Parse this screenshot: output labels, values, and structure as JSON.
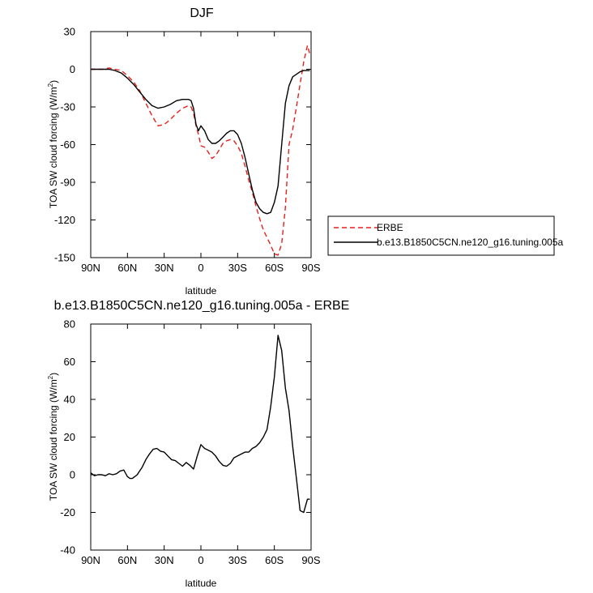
{
  "chart_data": [
    {
      "type": "line",
      "title": "DJF",
      "xlabel": "latitude",
      "ylabel": "TOA SW cloud forcing (W/m",
      "ylabel_sup": "2",
      "ylabel_end": ")",
      "xlim": [
        90,
        -90
      ],
      "ylim": [
        -150,
        30
      ],
      "xticks": [
        {
          "value": 90,
          "label": "90N"
        },
        {
          "value": 60,
          "label": "60N"
        },
        {
          "value": 30,
          "label": "30N"
        },
        {
          "value": 0,
          "label": "0"
        },
        {
          "value": -30,
          "label": "30S"
        },
        {
          "value": -60,
          "label": "60S"
        },
        {
          "value": -90,
          "label": "90S"
        }
      ],
      "yticks": [
        {
          "value": 30,
          "label": "30"
        },
        {
          "value": 0,
          "label": "0"
        },
        {
          "value": -30,
          "label": "-30"
        },
        {
          "value": -60,
          "label": "-60"
        },
        {
          "value": -90,
          "label": "-90"
        },
        {
          "value": -120,
          "label": "-120"
        },
        {
          "value": -150,
          "label": "-150"
        }
      ],
      "grid": false,
      "legend_position": "outside-right",
      "series": [
        {
          "name": "ERBE",
          "color": "#e8201c",
          "dash": "6,4",
          "x": [
            90,
            85,
            80,
            75,
            70,
            65,
            60,
            55,
            50,
            45,
            40,
            35,
            30,
            25,
            20,
            15,
            10,
            8,
            6,
            4,
            2,
            0,
            -3,
            -6,
            -9,
            -12,
            -15,
            -18,
            -21,
            -24,
            -27,
            -30,
            -33,
            -36,
            -39,
            -42,
            -45,
            -48,
            -51,
            -54,
            -57,
            -60,
            -63,
            -66,
            -69,
            -72,
            -75,
            -78,
            -81,
            -84,
            -87,
            -89
          ],
          "y": [
            0,
            0,
            0,
            1,
            0,
            -1,
            -5,
            -10,
            -17,
            -27,
            -37,
            -45,
            -44,
            -40,
            -35,
            -31,
            -29,
            -30,
            -35,
            -45,
            -52,
            -61,
            -62,
            -66,
            -71,
            -69,
            -64,
            -59,
            -57,
            -56,
            -57,
            -61,
            -67,
            -77,
            -88,
            -98,
            -109,
            -119,
            -128,
            -134,
            -140,
            -147,
            -148,
            -139,
            -110,
            -60,
            -48,
            -30,
            -12,
            6,
            19,
            12
          ]
        },
        {
          "name": "b.e13.B1850C5CN.ne120_g16.tuning.005a",
          "color": "#000000",
          "dash": "",
          "x": [
            90,
            85,
            80,
            75,
            70,
            65,
            60,
            55,
            50,
            45,
            40,
            35,
            30,
            25,
            20,
            15,
            10,
            8,
            6,
            4,
            2,
            0,
            -3,
            -6,
            -9,
            -12,
            -15,
            -18,
            -21,
            -24,
            -27,
            -30,
            -33,
            -36,
            -39,
            -42,
            -45,
            -48,
            -51,
            -54,
            -57,
            -60,
            -63,
            -66,
            -69,
            -72,
            -75,
            -78,
            -81,
            -84,
            -87,
            -89
          ],
          "y": [
            0,
            0,
            0,
            0,
            -1,
            -3,
            -7,
            -12,
            -18,
            -24,
            -29,
            -31,
            -30,
            -28,
            -25,
            -24,
            -24,
            -25,
            -31,
            -44,
            -49,
            -45,
            -49,
            -56,
            -59,
            -59,
            -57,
            -54,
            -51,
            -49,
            -49,
            -52,
            -59,
            -70,
            -83,
            -96,
            -106,
            -111,
            -114,
            -115,
            -114,
            -106,
            -93,
            -60,
            -27,
            -13,
            -6,
            -4,
            -2,
            -1,
            -1,
            -1
          ]
        }
      ]
    },
    {
      "type": "line",
      "title": "b.e13.B1850C5CN.ne120_g16.tuning.005a - ERBE",
      "xlabel": "latitude",
      "ylabel": "TOA SW cloud forcing (W/m",
      "ylabel_sup": "2",
      "ylabel_end": ")",
      "xlim": [
        90,
        -90
      ],
      "ylim": [
        -40,
        80
      ],
      "xticks": [
        {
          "value": 90,
          "label": "90N"
        },
        {
          "value": 60,
          "label": "60N"
        },
        {
          "value": 30,
          "label": "30N"
        },
        {
          "value": 0,
          "label": "0"
        },
        {
          "value": -30,
          "label": "30S"
        },
        {
          "value": -60,
          "label": "60S"
        },
        {
          "value": -90,
          "label": "90S"
        }
      ],
      "yticks": [
        {
          "value": 80,
          "label": "80"
        },
        {
          "value": 60,
          "label": "60"
        },
        {
          "value": 40,
          "label": "40"
        },
        {
          "value": 20,
          "label": "20"
        },
        {
          "value": 0,
          "label": "0"
        },
        {
          "value": -20,
          "label": "-20"
        },
        {
          "value": -40,
          "label": "-40"
        }
      ],
      "grid": false,
      "series": [
        {
          "color": "#000000",
          "dash": "",
          "x": [
            90,
            87,
            84,
            81,
            78,
            75,
            72,
            69,
            66,
            63,
            60,
            58,
            56,
            54,
            52,
            50,
            48,
            45,
            42,
            39,
            36,
            33,
            30,
            27,
            24,
            21,
            18,
            15,
            12,
            9,
            6,
            3,
            0,
            -3,
            -6,
            -9,
            -12,
            -15,
            -18,
            -21,
            -24,
            -27,
            -30,
            -33,
            -36,
            -39,
            -42,
            -45,
            -48,
            -51,
            -54,
            -57,
            -60,
            -63,
            -66,
            -69,
            -72,
            -75,
            -78,
            -81,
            -84,
            -87,
            -89
          ],
          "y": [
            1,
            -0.5,
            0,
            0,
            -0.5,
            0.5,
            0,
            0.5,
            2,
            2.5,
            -1,
            -2,
            -2,
            -1,
            0,
            2,
            4,
            8,
            11,
            13.5,
            14,
            12.5,
            12,
            10,
            8,
            7.5,
            6,
            4.5,
            6.5,
            5,
            3,
            10,
            16,
            14,
            13,
            12,
            10,
            7,
            5,
            4.5,
            6,
            9,
            10,
            11,
            12,
            12,
            14,
            15,
            17,
            20,
            24,
            36,
            52,
            74,
            66,
            46,
            34,
            15,
            -2,
            -19,
            -20,
            -13,
            -13
          ]
        }
      ]
    }
  ]
}
